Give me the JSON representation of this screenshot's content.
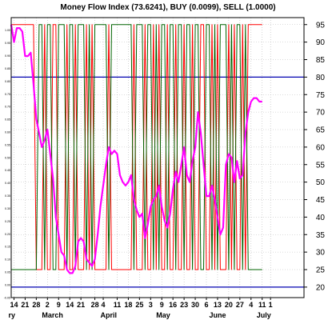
{
  "chart_data": {
    "type": "line",
    "title": "Money Flow Index (73.6241), BUY (0.0099), SELL (1.0000)",
    "y_right": {
      "min": 17,
      "max": 97,
      "ticks": [
        "95",
        "90",
        "85",
        "80",
        "75",
        "70",
        "65",
        "60",
        "55",
        "50",
        "45",
        "40",
        "35",
        "30",
        "25",
        "20"
      ],
      "tick_values": [
        95,
        90,
        85,
        80,
        75,
        70,
        65,
        60,
        55,
        50,
        45,
        40,
        35,
        30,
        25,
        20
      ]
    },
    "y_left": {
      "min": -0.05,
      "max": 1.05,
      "ticks": [
        "1.00",
        "0.95",
        "0.90",
        "0.85",
        "0.80",
        "0.75",
        "0.70",
        "0.65",
        "0.60",
        "0.55",
        "0.50",
        "0.45",
        "0.40",
        "0.35",
        "0.30",
        "0.25",
        "0.20",
        "0.15",
        "0.10",
        "0.05",
        "0.00",
        "-0.05"
      ],
      "tick_values": [
        1.0,
        0.95,
        0.9,
        0.85,
        0.8,
        0.75,
        0.7,
        0.65,
        0.6,
        0.55,
        0.5,
        0.45,
        0.4,
        0.35,
        0.3,
        0.25,
        0.2,
        0.15,
        0.1,
        0.05,
        0.0,
        -0.05
      ]
    },
    "x_range": [
      0,
      105
    ],
    "x_day_ticks": [
      {
        "x": 1,
        "label": "14"
      },
      {
        "x": 5,
        "label": "21"
      },
      {
        "x": 9,
        "label": "28"
      },
      {
        "x": 13,
        "label": "2"
      },
      {
        "x": 17,
        "label": "9"
      },
      {
        "x": 21,
        "label": "14"
      },
      {
        "x": 25,
        "label": "21"
      },
      {
        "x": 30,
        "label": "28"
      },
      {
        "x": 33,
        "label": "4"
      },
      {
        "x": 38,
        "label": "11"
      },
      {
        "x": 42,
        "label": "18"
      },
      {
        "x": 46,
        "label": "25"
      },
      {
        "x": 50,
        "label": "3"
      },
      {
        "x": 54,
        "label": "9"
      },
      {
        "x": 58,
        "label": "16"
      },
      {
        "x": 62,
        "label": "23"
      },
      {
        "x": 66,
        "label": "30"
      },
      {
        "x": 70,
        "label": "6"
      },
      {
        "x": 74,
        "label": "13"
      },
      {
        "x": 78,
        "label": "20"
      },
      {
        "x": 82,
        "label": "27"
      },
      {
        "x": 86,
        "label": "4"
      },
      {
        "x": 90,
        "label": "11"
      },
      {
        "x": 93,
        "label": "1"
      }
    ],
    "x_month_labels": [
      {
        "x": -1,
        "label": "ry"
      },
      {
        "x": 11,
        "label": "March"
      },
      {
        "x": 32,
        "label": "April"
      },
      {
        "x": 52,
        "label": "May"
      },
      {
        "x": 71,
        "label": "June"
      },
      {
        "x": 88,
        "label": "July"
      }
    ],
    "reference_lines": [
      {
        "value": 80,
        "color": "#0000b0"
      },
      {
        "value": 20,
        "color": "#0000b0"
      }
    ],
    "series": [
      {
        "color": "#ff00ff",
        "axis": "right",
        "x": [
          0,
          1,
          2,
          3,
          4,
          5,
          6,
          7,
          8,
          9,
          10,
          11,
          12,
          13,
          14,
          15,
          16,
          17,
          18,
          19,
          20,
          21,
          22,
          23,
          24,
          25,
          26,
          27,
          28,
          29,
          30,
          31,
          32,
          33,
          34,
          35,
          36,
          37,
          38,
          39,
          40,
          41,
          42,
          43,
          44,
          45,
          46,
          47,
          48,
          49,
          50,
          51,
          52,
          53,
          54,
          55,
          56,
          57,
          58,
          59,
          60,
          61,
          62,
          63,
          64,
          65,
          66,
          67,
          68,
          69,
          70,
          71,
          72,
          73,
          74,
          75,
          76,
          77,
          78,
          79,
          80,
          81,
          82,
          83,
          84,
          85,
          86,
          87,
          88,
          89,
          90
        ],
        "values": [
          95,
          90,
          94,
          94,
          93,
          86,
          86,
          87,
          78,
          68,
          64,
          60,
          62,
          65,
          58,
          51,
          40,
          35,
          30,
          29,
          25,
          24,
          24,
          26,
          33,
          34,
          33,
          28,
          27,
          26,
          28,
          35,
          43,
          49,
          55,
          60,
          58,
          59,
          58,
          52,
          50,
          49,
          50,
          52,
          45,
          42,
          40,
          41,
          34,
          38,
          43,
          45,
          46,
          49,
          43,
          39,
          37,
          41,
          48,
          53,
          50,
          55,
          60,
          52,
          50,
          56,
          60,
          70,
          64,
          55,
          46,
          46,
          49,
          45,
          40,
          35,
          37,
          55,
          58,
          57,
          50,
          56,
          51,
          52,
          64,
          70,
          73,
          74,
          74,
          73,
          73
        ]
      },
      {
        "color": "#ff0000",
        "axis": "right",
        "x": [
          0,
          1,
          2,
          3,
          4,
          5,
          6,
          7,
          8,
          9,
          10,
          11,
          12,
          13,
          14,
          15,
          16,
          17,
          18,
          19,
          20,
          21,
          22,
          23,
          24,
          25,
          26,
          27,
          28,
          29,
          30,
          31,
          32,
          33,
          34,
          35,
          36,
          37,
          38,
          39,
          40,
          41,
          42,
          43,
          44,
          45,
          46,
          47,
          48,
          49,
          50,
          51,
          52,
          53,
          54,
          55,
          56,
          57,
          58,
          59,
          60,
          61,
          62,
          63,
          64,
          65,
          66,
          67,
          68,
          69,
          70,
          71,
          72,
          73,
          74,
          75,
          76,
          77,
          78,
          79,
          80,
          81,
          82,
          83,
          84,
          85,
          86,
          87,
          88,
          89,
          90
        ],
        "values": [
          95,
          95,
          95,
          95,
          95,
          95,
          95,
          95,
          95,
          25,
          25,
          25,
          95,
          25,
          25,
          95,
          95,
          25,
          25,
          25,
          95,
          25,
          25,
          95,
          25,
          25,
          25,
          95,
          25,
          95,
          25,
          25,
          25,
          25,
          25,
          95,
          25,
          25,
          25,
          25,
          25,
          25,
          25,
          25,
          95,
          25,
          25,
          25,
          95,
          25,
          25,
          95,
          25,
          95,
          25,
          25,
          95,
          25,
          25,
          95,
          25,
          25,
          95,
          25,
          25,
          95,
          25,
          25,
          95,
          95,
          25,
          25,
          95,
          25,
          95,
          25,
          25,
          25,
          95,
          25,
          95,
          25,
          25,
          95,
          25,
          95,
          95,
          95,
          95,
          95,
          95
        ]
      },
      {
        "color": "#006400",
        "axis": "right",
        "x": [
          0,
          1,
          2,
          3,
          4,
          5,
          6,
          7,
          8,
          9,
          10,
          11,
          12,
          13,
          14,
          15,
          16,
          17,
          18,
          19,
          20,
          21,
          22,
          23,
          24,
          25,
          26,
          27,
          28,
          29,
          30,
          31,
          32,
          33,
          34,
          35,
          36,
          37,
          38,
          39,
          40,
          41,
          42,
          43,
          44,
          45,
          46,
          47,
          48,
          49,
          50,
          51,
          52,
          53,
          54,
          55,
          56,
          57,
          58,
          59,
          60,
          61,
          62,
          63,
          64,
          65,
          66,
          67,
          68,
          69,
          70,
          71,
          72,
          73,
          74,
          75,
          76,
          77,
          78,
          79,
          80,
          81,
          82,
          83,
          84,
          85,
          86,
          87,
          88,
          89,
          90
        ],
        "values": [
          25,
          25,
          25,
          25,
          25,
          25,
          25,
          25,
          25,
          25,
          95,
          95,
          25,
          95,
          95,
          25,
          25,
          95,
          95,
          95,
          25,
          95,
          95,
          25,
          95,
          95,
          95,
          25,
          95,
          25,
          95,
          95,
          95,
          95,
          95,
          25,
          95,
          95,
          95,
          95,
          95,
          95,
          95,
          95,
          25,
          95,
          95,
          95,
          25,
          95,
          95,
          25,
          95,
          25,
          95,
          95,
          25,
          95,
          95,
          25,
          95,
          95,
          25,
          95,
          95,
          25,
          95,
          95,
          25,
          25,
          95,
          95,
          25,
          95,
          25,
          95,
          95,
          95,
          25,
          95,
          25,
          95,
          95,
          25,
          95,
          25,
          25,
          25,
          25,
          25,
          25
        ]
      }
    ],
    "grid": true
  }
}
